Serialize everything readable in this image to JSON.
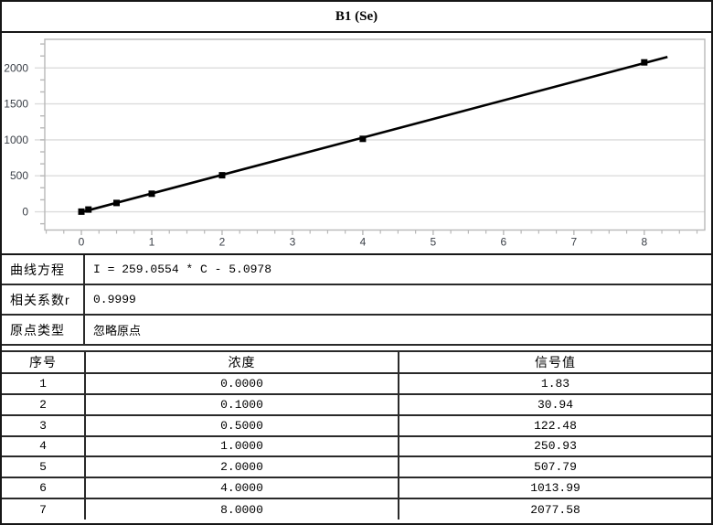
{
  "title": "B1 (Se)",
  "chart_data": {
    "type": "line",
    "title": "B1 (Se)",
    "x": [
      0,
      0.1,
      0.5,
      1,
      2,
      4,
      8
    ],
    "y": [
      1.83,
      30.94,
      122.48,
      250.93,
      507.79,
      1013.99,
      2077.58
    ],
    "fit_line": {
      "slope": 259.0554,
      "intercept": -5.0978,
      "x_start": 0,
      "x_end": 8.33
    },
    "xlabel": "",
    "ylabel": "",
    "xlim": [
      -0.52,
      8.86
    ],
    "ylim": [
      -254,
      2398
    ],
    "x_ticks": [
      0,
      1,
      2,
      3,
      4,
      5,
      6,
      7,
      8
    ],
    "y_ticks": [
      0,
      500,
      1000,
      1500,
      2000
    ],
    "x_minor_step": 0.25,
    "y_minor_divisions": 3,
    "grid": "horizontal-major-only",
    "legend": "none",
    "marker": "filled-square",
    "colors": {
      "line": "#000000",
      "marker": "#000000",
      "grid": "#dcdcdc",
      "frame": "#b8b8b8",
      "tick": "#b8b8b8",
      "tick_label": "#3a3f47",
      "background": "#ffffff"
    }
  },
  "info_rows": [
    {
      "label": "曲线方程",
      "value": "I = 259.0554 * C - 5.0978"
    },
    {
      "label": "相关系数r",
      "value": "0.9999"
    },
    {
      "label": "原点类型",
      "value": "忽略原点"
    }
  ],
  "table": {
    "headers": [
      "序号",
      "浓度",
      "信号值"
    ],
    "rows": [
      [
        "1",
        "0.0000",
        "1.83"
      ],
      [
        "2",
        "0.1000",
        "30.94"
      ],
      [
        "3",
        "0.5000",
        "122.48"
      ],
      [
        "4",
        "1.0000",
        "250.93"
      ],
      [
        "5",
        "2.0000",
        "507.79"
      ],
      [
        "6",
        "4.0000",
        "1013.99"
      ],
      [
        "7",
        "8.0000",
        "2077.58"
      ]
    ]
  }
}
